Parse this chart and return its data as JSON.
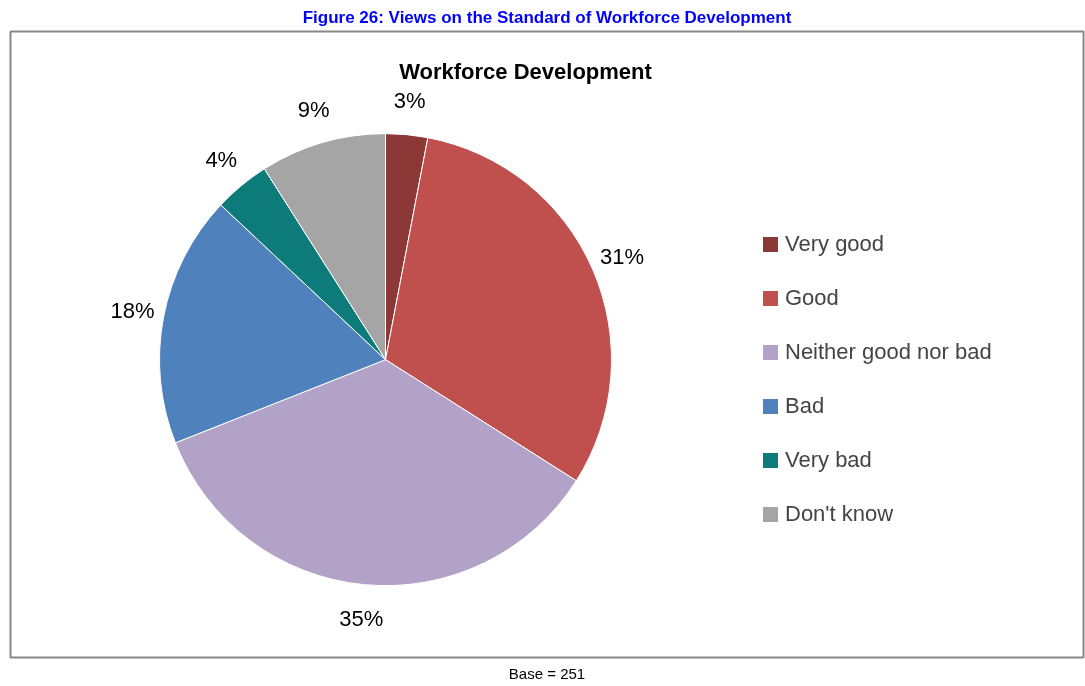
{
  "chart_data": {
    "type": "pie",
    "title": "Workforce Development",
    "categories": [
      "Very good",
      "Good",
      "Neither good nor bad",
      "Bad",
      "Very bad",
      "Don't know"
    ],
    "values": [
      3,
      31,
      35,
      18,
      4,
      9
    ],
    "colors": [
      "#8c3836",
      "#c0504d",
      "#b3a2c7",
      "#4f81bd",
      "#0e7b7b",
      "#a5a5a5"
    ],
    "value_labels": [
      "3%",
      "31%",
      "35%",
      "18%",
      "4%",
      "9%"
    ],
    "legend": "right",
    "annotations": [
      "Figure 26: Views on the Standard of Workforce Development",
      "Base = 251"
    ]
  }
}
